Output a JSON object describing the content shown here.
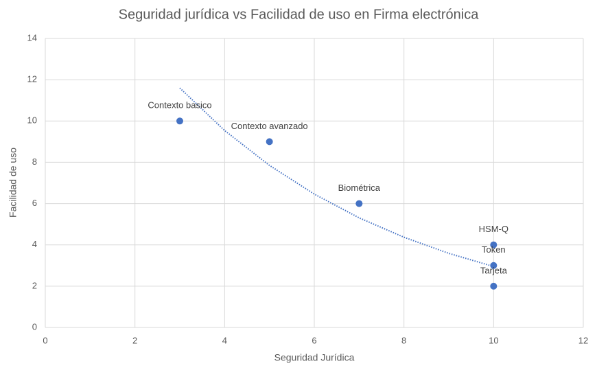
{
  "chart_data": {
    "type": "scatter",
    "title": "Seguridad jurídica  vs Facilidad de uso en Firma electrónica",
    "x_label": "Seguridad Jurídica",
    "y_label": "Facilidad de uso",
    "x": [
      3,
      5,
      7,
      10,
      10,
      10
    ],
    "values": [
      10,
      9,
      6,
      4,
      3,
      2
    ],
    "point_labels": [
      "Contexto basico",
      "Contexto avanzado",
      "Biométrica",
      "HSM-Q",
      "Token",
      "Tarjeta"
    ],
    "color": "#4472c4",
    "trendline": {
      "x": [
        3,
        4,
        5,
        6,
        7,
        8,
        9,
        10
      ],
      "y": [
        11.6,
        9.54,
        7.85,
        6.46,
        5.31,
        4.37,
        3.59,
        2.95
      ]
    },
    "xlim": [
      0,
      12
    ],
    "xticks": [
      0,
      2,
      4,
      6,
      8,
      10,
      12
    ],
    "ylim": [
      0,
      14
    ],
    "yticks": [
      0,
      2,
      4,
      6,
      8,
      10,
      12,
      14
    ],
    "grid": true
  }
}
